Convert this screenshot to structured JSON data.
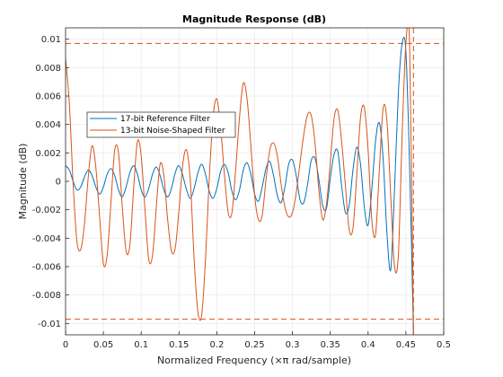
{
  "chart_data": {
    "type": "line",
    "title": "Magnitude Response (dB)",
    "xlabel": "Normalized Frequency (×π rad/sample)",
    "ylabel": "Magnitude (dB)",
    "xlim": [
      0,
      0.5
    ],
    "ylim": [
      -0.0108,
      0.0108
    ],
    "xticks": [
      0,
      0.05,
      0.1,
      0.15,
      0.2,
      0.25,
      0.3,
      0.35,
      0.4,
      0.45,
      0.5
    ],
    "xtick_labels": [
      "0",
      "0.05",
      "0.1",
      "0.15",
      "0.2",
      "0.25",
      "0.3",
      "0.35",
      "0.4",
      "0.45",
      "0.5"
    ],
    "yticks": [
      -0.01,
      -0.008,
      -0.006,
      -0.004,
      -0.002,
      0,
      0.002,
      0.004,
      0.006,
      0.008,
      0.01
    ],
    "ytick_labels": [
      "-0.01",
      "-0.008",
      "-0.006",
      "-0.004",
      "-0.002",
      "0",
      "0.002",
      "0.004",
      "0.006",
      "0.008",
      "0.01"
    ],
    "grid": true,
    "legend_position": "upper-left",
    "series": [
      {
        "name": "17-bit Reference Filter",
        "color": "#0072BD",
        "x": [
          0,
          0.005,
          0.01,
          0.015,
          0.02,
          0.025,
          0.03,
          0.035,
          0.04,
          0.045,
          0.05,
          0.055,
          0.06,
          0.065,
          0.07,
          0.075,
          0.08,
          0.085,
          0.09,
          0.095,
          0.1,
          0.105,
          0.11,
          0.115,
          0.12,
          0.125,
          0.13,
          0.135,
          0.14,
          0.145,
          0.15,
          0.155,
          0.16,
          0.165,
          0.17,
          0.175,
          0.18,
          0.185,
          0.19,
          0.195,
          0.2,
          0.205,
          0.21,
          0.215,
          0.22,
          0.225,
          0.23,
          0.235,
          0.24,
          0.245,
          0.25,
          0.255,
          0.26,
          0.265,
          0.27,
          0.275,
          0.28,
          0.285,
          0.29,
          0.295,
          0.3,
          0.305,
          0.31,
          0.315,
          0.32,
          0.325,
          0.33,
          0.335,
          0.34,
          0.345,
          0.35,
          0.355,
          0.36,
          0.365,
          0.37,
          0.375,
          0.38,
          0.385,
          0.39,
          0.395,
          0.4,
          0.405,
          0.41,
          0.415,
          0.42,
          0.425,
          0.43,
          0.435,
          0.44,
          0.445,
          0.45,
          0.455,
          0.46
        ],
        "y": [
          0.0011,
          0.0008,
          0.0,
          -0.0006,
          -0.0004,
          0.0003,
          0.0008,
          0.0004,
          -0.0004,
          -0.0009,
          -0.0004,
          0.0005,
          0.0009,
          0.0004,
          -0.0006,
          -0.0011,
          -0.0004,
          0.0006,
          0.0011,
          0.0005,
          -0.0006,
          -0.0011,
          -0.0005,
          0.0005,
          0.001,
          0.0004,
          -0.0006,
          -0.0011,
          -0.0005,
          0.0006,
          0.0011,
          0.0004,
          -0.0006,
          -0.0012,
          -0.0005,
          0.0006,
          0.0012,
          0.0005,
          -0.0007,
          -0.0012,
          -0.0005,
          0.0007,
          0.0012,
          0.0006,
          -0.0007,
          -0.0013,
          -0.0006,
          0.0008,
          0.0013,
          0.0005,
          -0.0009,
          -0.0014,
          -0.0004,
          0.0009,
          0.0014,
          0.0004,
          -0.001,
          -0.0015,
          -0.0004,
          0.0012,
          0.0015,
          0.0004,
          -0.0013,
          -0.0015,
          -0.0002,
          0.0015,
          0.0016,
          0.0001,
          -0.0017,
          -0.0019,
          0.0002,
          0.0019,
          0.0021,
          -0.0003,
          -0.0022,
          -0.0017,
          0.0008,
          0.0024,
          0.0012,
          -0.0018,
          -0.0031,
          -0.0005,
          0.0029,
          0.0041,
          0.0015,
          -0.0037,
          -0.0062,
          -0.0005,
          0.0062,
          0.0097,
          0.0091,
          0.0008,
          -0.0108
        ]
      },
      {
        "name": "13-bit Noise-Shaped Filter",
        "color": "#D95319",
        "x": [
          0,
          0.005,
          0.01,
          0.015,
          0.02,
          0.025,
          0.03,
          0.035,
          0.04,
          0.045,
          0.05,
          0.055,
          0.06,
          0.065,
          0.07,
          0.075,
          0.08,
          0.085,
          0.09,
          0.095,
          0.1,
          0.105,
          0.11,
          0.115,
          0.12,
          0.125,
          0.13,
          0.135,
          0.14,
          0.145,
          0.15,
          0.155,
          0.16,
          0.165,
          0.17,
          0.175,
          0.18,
          0.185,
          0.19,
          0.195,
          0.2,
          0.205,
          0.21,
          0.215,
          0.22,
          0.225,
          0.23,
          0.235,
          0.24,
          0.245,
          0.25,
          0.255,
          0.26,
          0.265,
          0.27,
          0.275,
          0.28,
          0.285,
          0.29,
          0.295,
          0.3,
          0.305,
          0.31,
          0.315,
          0.32,
          0.325,
          0.33,
          0.335,
          0.34,
          0.345,
          0.35,
          0.355,
          0.36,
          0.365,
          0.37,
          0.375,
          0.38,
          0.385,
          0.39,
          0.395,
          0.4,
          0.405,
          0.41,
          0.415,
          0.42,
          0.425,
          0.43,
          0.435,
          0.44,
          0.445,
          0.45,
          0.455,
          0.46
        ],
        "y": [
          0.0086,
          0.0055,
          -0.0002,
          -0.0042,
          -0.0048,
          -0.003,
          0.0003,
          0.0025,
          0.001,
          -0.0025,
          -0.0058,
          -0.0052,
          -0.0015,
          0.0022,
          0.002,
          -0.0018,
          -0.0049,
          -0.0045,
          -0.0005,
          0.0028,
          0.0018,
          -0.002,
          -0.0055,
          -0.0052,
          -0.0018,
          0.0012,
          0.0004,
          -0.0027,
          -0.0049,
          -0.0047,
          -0.002,
          0.0012,
          0.0022,
          0.0,
          -0.0055,
          -0.0092,
          -0.0094,
          -0.0055,
          0.0002,
          0.0045,
          0.0058,
          0.0038,
          0.0005,
          -0.0022,
          -0.0022,
          0.0009,
          0.0045,
          0.0069,
          0.0058,
          0.0025,
          -0.001,
          -0.0027,
          -0.0024,
          0.0001,
          0.0022,
          0.0027,
          0.0018,
          -0.0002,
          -0.0018,
          -0.0025,
          -0.0022,
          -0.0008,
          0.0013,
          0.0033,
          0.0047,
          0.0046,
          0.0026,
          -0.0007,
          -0.0027,
          -0.0016,
          0.0013,
          0.0044,
          0.005,
          0.0028,
          -0.0003,
          -0.0034,
          -0.0033,
          0.0004,
          0.0045,
          0.0052,
          0.0022,
          -0.0028,
          -0.0037,
          0.0009,
          0.0052,
          0.0042,
          -0.0011,
          -0.006,
          -0.0052,
          0.0032,
          0.0097,
          0.0094,
          -0.0108
        ]
      }
    ],
    "reference_lines": [
      {
        "y": 0.0097,
        "color": "#D95319",
        "style": "dashed"
      },
      {
        "y": -0.0097,
        "color": "#D95319",
        "style": "dashed"
      },
      {
        "x": 0.46,
        "color": "#D95319",
        "style": "dashed"
      }
    ]
  }
}
